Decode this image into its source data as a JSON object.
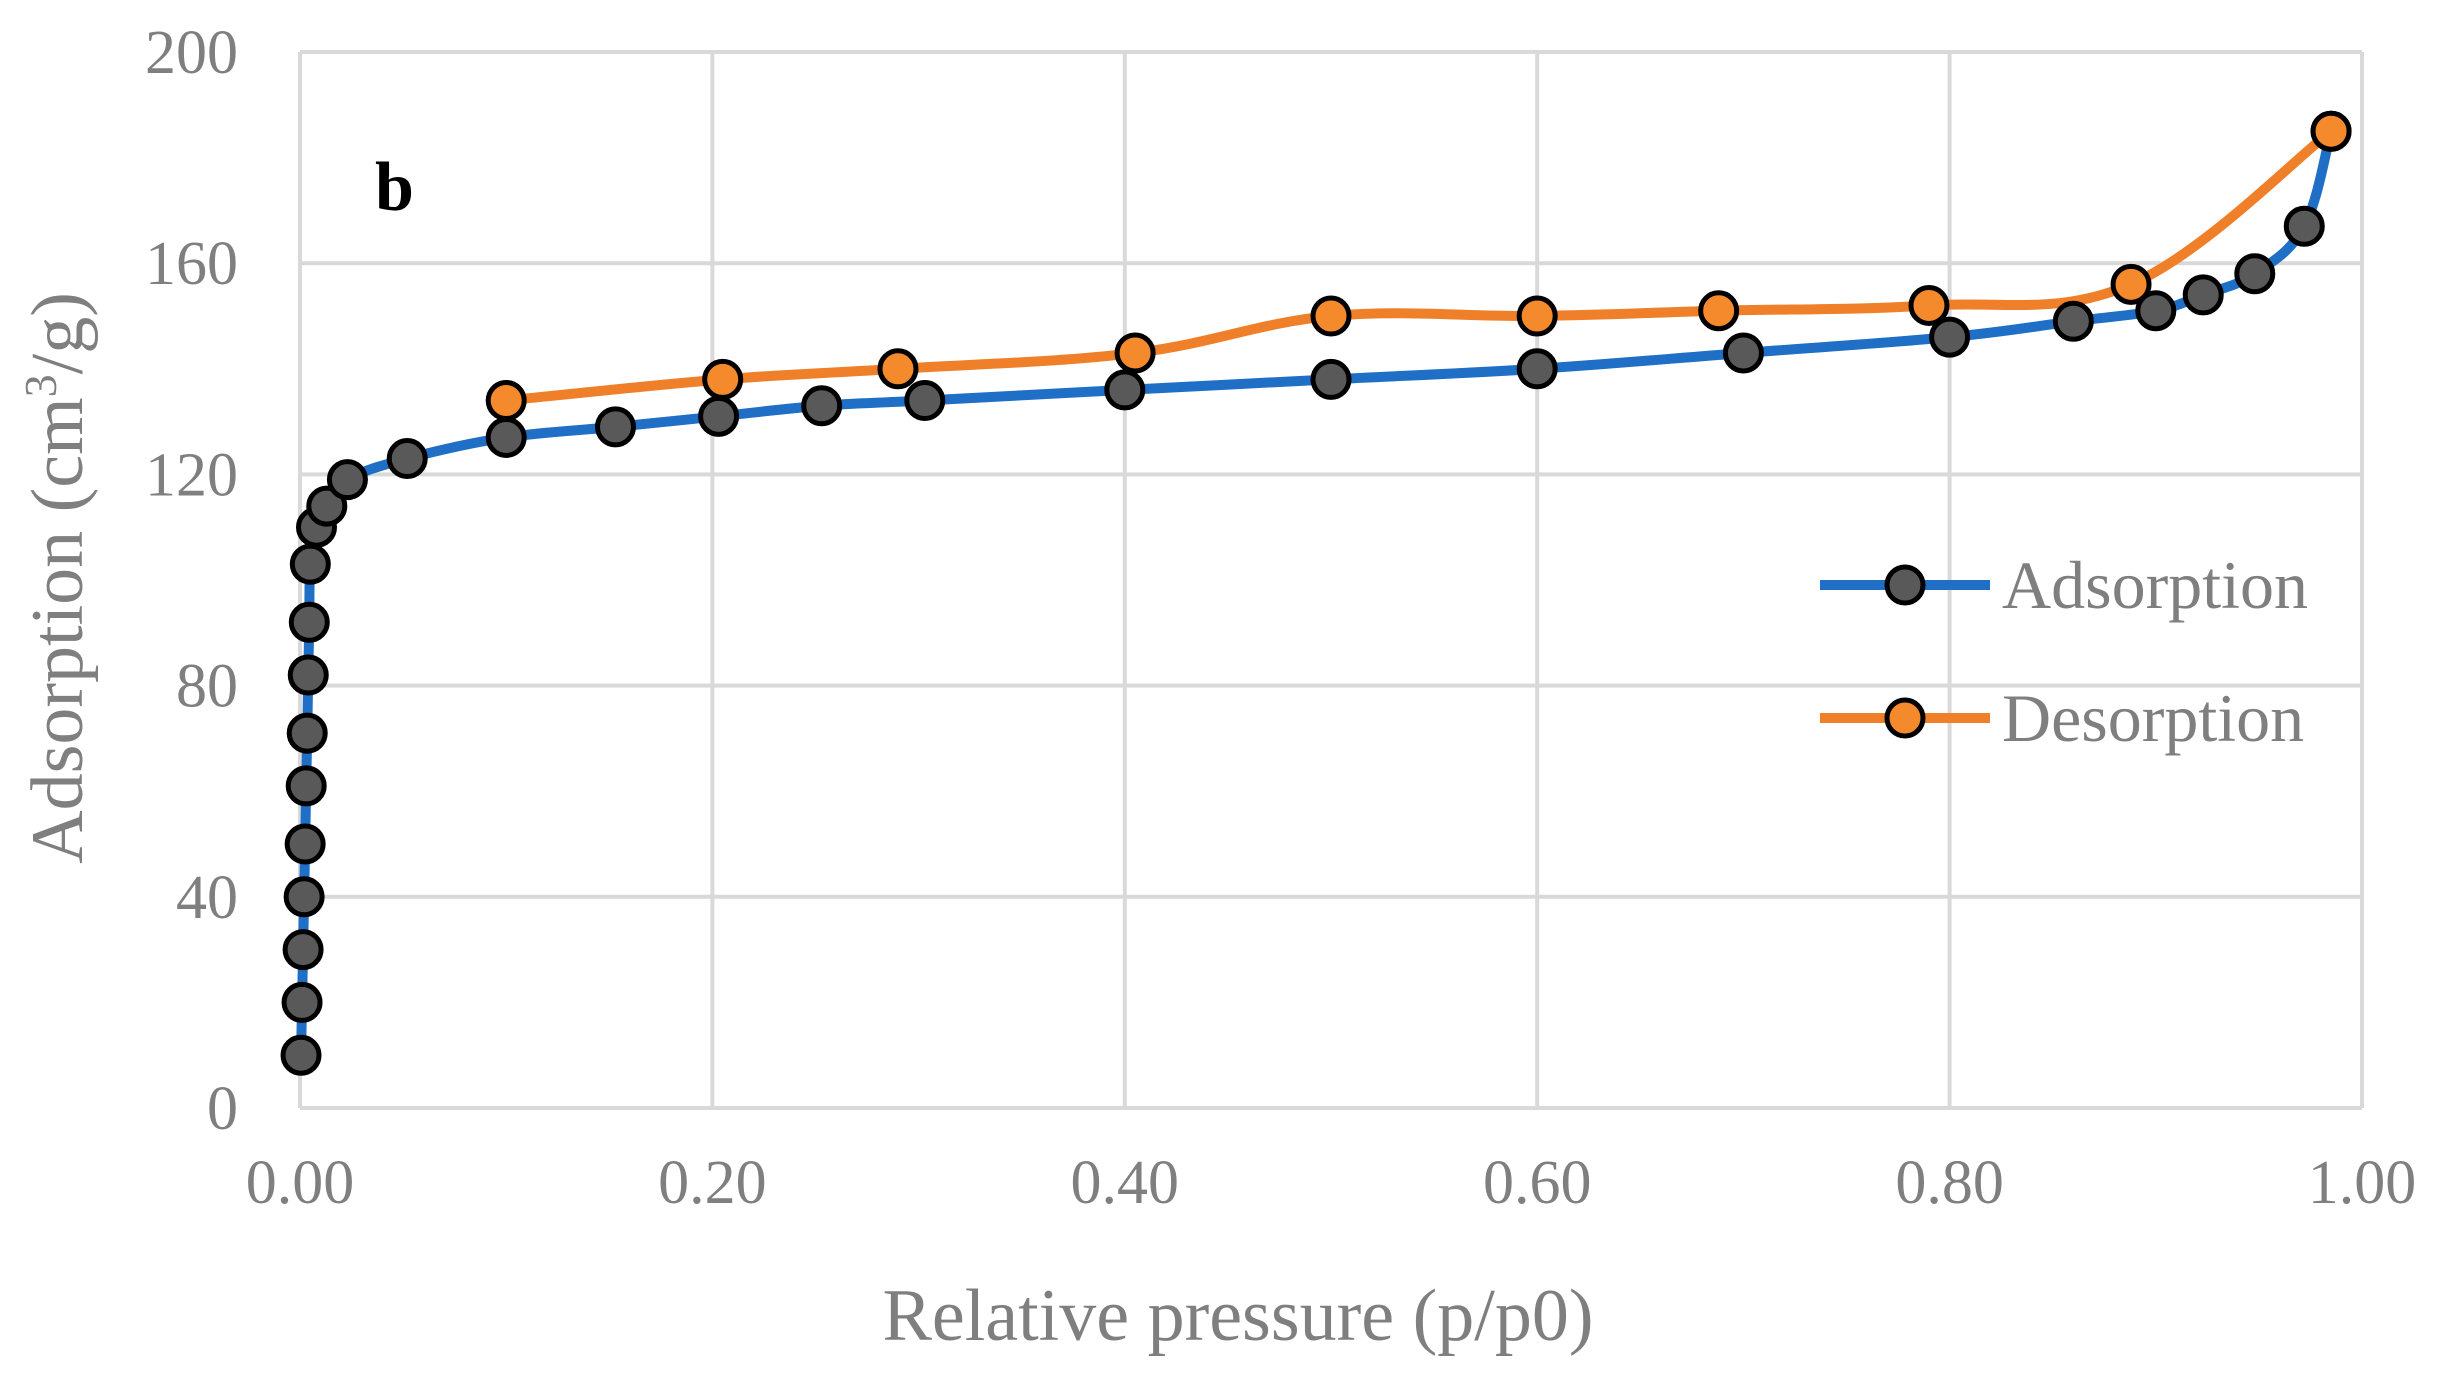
{
  "chart_data": {
    "type": "line",
    "title": "",
    "panel_label": "b",
    "xlabel": "Relative pressure (p/p0)",
    "ylabel_main": "Adsorption (cm",
    "ylabel_sup": "3",
    "ylabel_tail": "/g)",
    "xlim": [
      0,
      1
    ],
    "ylim": [
      0,
      200
    ],
    "x_ticks": [
      0,
      0.2,
      0.4,
      0.6,
      0.8,
      1.0
    ],
    "x_tick_labels": [
      "0.00",
      "0.20",
      "0.40",
      "0.60",
      "0.80",
      "1.00"
    ],
    "y_ticks": [
      0,
      40,
      80,
      120,
      160,
      200
    ],
    "y_tick_labels": [
      "0",
      "40",
      "80",
      "120",
      "160",
      "200"
    ],
    "grid": true,
    "legend_position": "right",
    "series": [
      {
        "name": "Adsorption",
        "line_color": "#1f6fc6",
        "marker_color": "#595959",
        "x": [
          0.0005,
          0.001,
          0.0015,
          0.002,
          0.0025,
          0.003,
          0.0035,
          0.004,
          0.0045,
          0.005,
          0.008,
          0.013,
          0.023,
          0.052,
          0.1,
          0.153,
          0.203,
          0.253,
          0.303,
          0.4,
          0.5,
          0.6,
          0.7,
          0.8,
          0.86,
          0.9,
          0.923,
          0.948,
          0.972,
          0.985
        ],
        "y": [
          10,
          20,
          30,
          40,
          50,
          61,
          71,
          82,
          92,
          103,
          110,
          114,
          119,
          123,
          127,
          129,
          131,
          133,
          134,
          136,
          138,
          140,
          143,
          146,
          149,
          151,
          154,
          158,
          167,
          185
        ]
      },
      {
        "name": "Desorption",
        "line_color": "#f07f29",
        "marker_color": "#f58a2c",
        "x": [
          0.1,
          0.205,
          0.29,
          0.405,
          0.5,
          0.6,
          0.688,
          0.79,
          0.888,
          0.985
        ],
        "y": [
          134,
          138,
          140,
          143,
          150,
          150,
          151,
          152,
          156,
          185
        ]
      }
    ]
  }
}
